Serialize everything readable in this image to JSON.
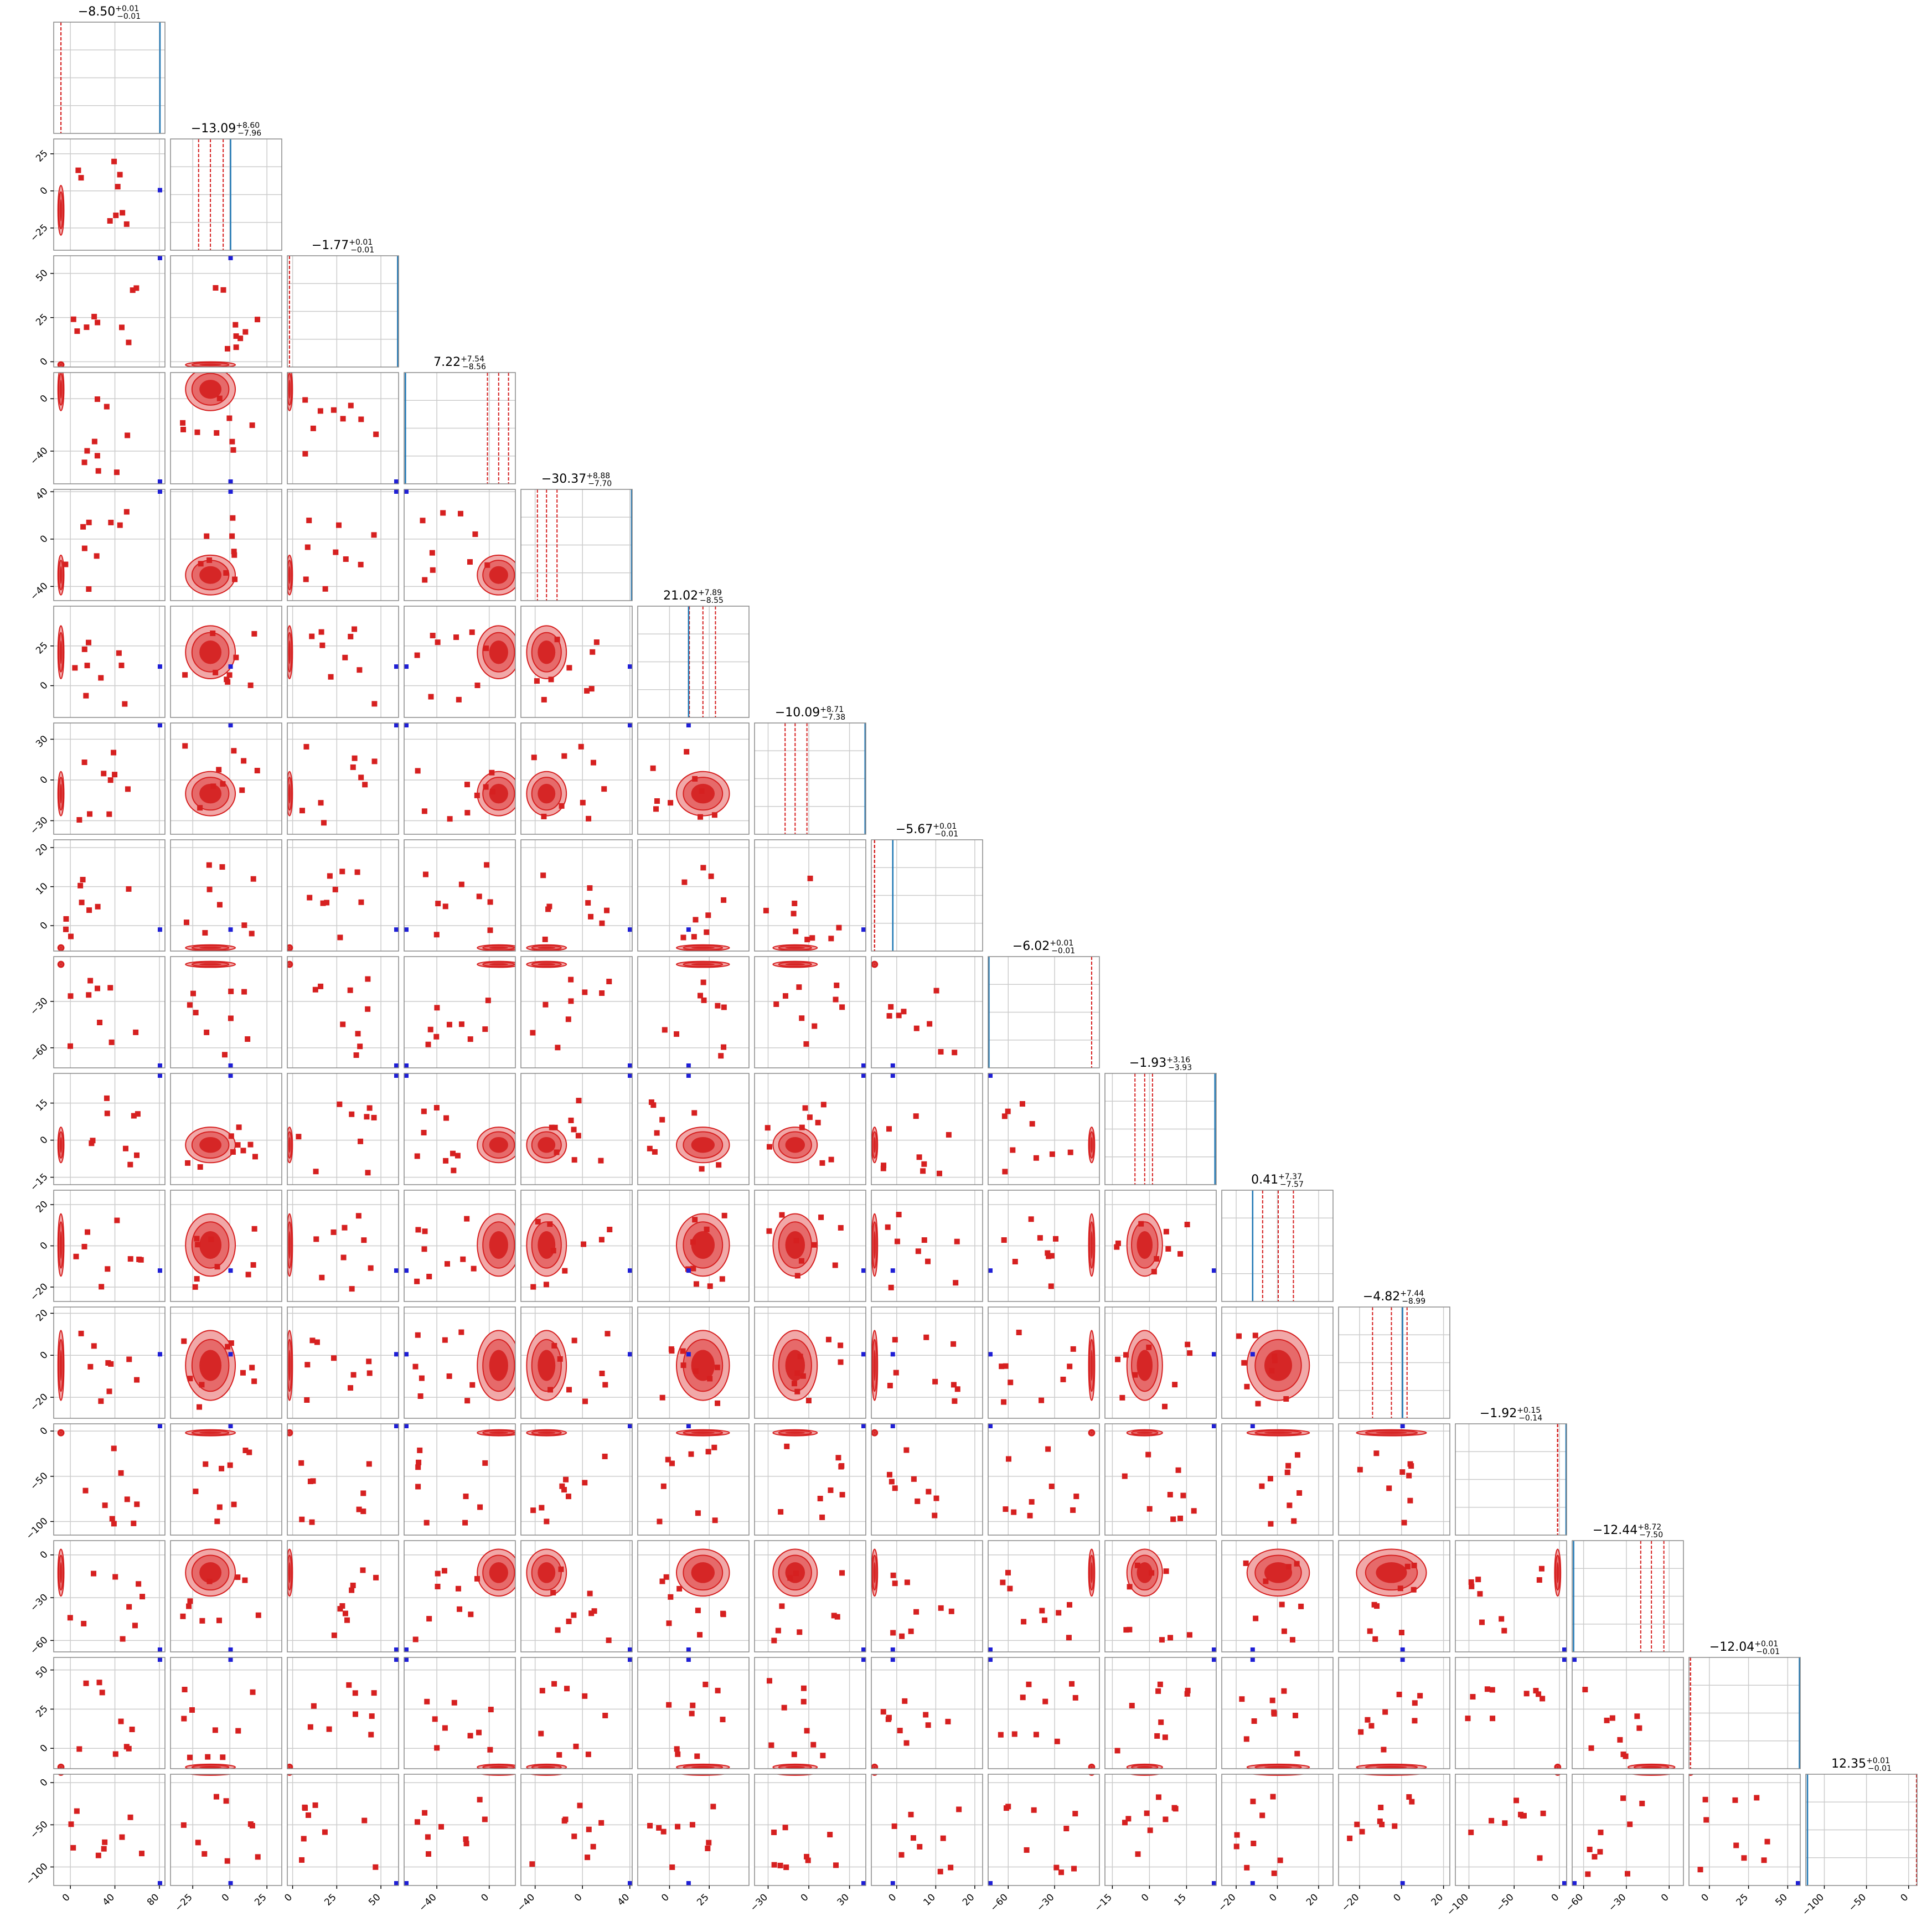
{
  "chart_data": {
    "type": "corner",
    "n_params": 16,
    "colors": {
      "samples": "#d62020",
      "truth": "#1f1fd6",
      "truth_line": "#1f77b4",
      "grid": "#cccccc"
    },
    "params": [
      {
        "median": "−8.50",
        "plus": "+0.01",
        "minus": "−0.01",
        "range": [
          -15,
          85
        ],
        "ticks": [
          0,
          40,
          80
        ],
        "tick_labels": [
          "0",
          "40",
          "80"
        ],
        "median_val": -8.5,
        "q_lo": -8.51,
        "q_hi": -8.49,
        "truth": 80.5
      },
      {
        "median": "−13.09",
        "plus": "+8.60",
        "minus": "−7.96",
        "range": [
          -40,
          35
        ],
        "ticks": [
          -25,
          0,
          25
        ],
        "tick_labels": [
          "−25",
          "0",
          "25"
        ],
        "median_val": -13.09,
        "q_lo": -21.05,
        "q_hi": -4.49,
        "truth": 0.5
      },
      {
        "median": "−1.77",
        "plus": "+0.01",
        "minus": "−0.01",
        "range": [
          -3,
          60
        ],
        "ticks": [
          0,
          25,
          50
        ],
        "tick_labels": [
          "0",
          "25",
          "50"
        ],
        "median_val": -1.77,
        "q_lo": -1.78,
        "q_hi": -1.76,
        "truth": 59.5
      },
      {
        "median": "7.22",
        "plus": "+7.54",
        "minus": "−8.56",
        "range": [
          -65,
          20
        ],
        "ticks": [
          -40,
          0
        ],
        "tick_labels": [
          "−40",
          "0"
        ],
        "median_val": 7.22,
        "q_lo": -1.34,
        "q_hi": 14.76,
        "truth": -64
      },
      {
        "median": "−30.37",
        "plus": "+8.88",
        "minus": "−7.70",
        "range": [
          -52,
          42
        ],
        "ticks": [
          -40,
          0,
          40
        ],
        "tick_labels": [
          "−40",
          "0",
          "40"
        ],
        "median_val": -30.37,
        "q_lo": -38.07,
        "q_hi": -21.49,
        "truth": 41.5
      },
      {
        "median": "21.02",
        "plus": "+7.89",
        "minus": "−8.55",
        "range": [
          -20,
          50
        ],
        "ticks": [
          0,
          25
        ],
        "tick_labels": [
          "0",
          "25"
        ],
        "median_val": 21.02,
        "q_lo": 12.47,
        "q_hi": 28.91,
        "truth": 12
      },
      {
        "median": "−10.09",
        "plus": "+8.71",
        "minus": "−7.38",
        "range": [
          -40,
          42
        ],
        "ticks": [
          -30,
          0,
          30
        ],
        "tick_labels": [
          "−30",
          "0",
          "30"
        ],
        "median_val": -10.09,
        "q_lo": -17.47,
        "q_hi": -1.38,
        "truth": 41.5
      },
      {
        "median": "−5.67",
        "plus": "+0.01",
        "minus": "−0.01",
        "range": [
          -6.5,
          22
        ],
        "ticks": [
          0,
          10,
          20
        ],
        "tick_labels": [
          "0",
          "10",
          "20"
        ],
        "median_val": -5.67,
        "q_lo": -5.68,
        "q_hi": -5.66,
        "truth": -1
      },
      {
        "median": "−6.02",
        "plus": "+0.01",
        "minus": "−0.01",
        "range": [
          -73,
          -1
        ],
        "ticks": [
          -60,
          -30
        ],
        "tick_labels": [
          "−60",
          "−30"
        ],
        "median_val": -6.02,
        "q_lo": -6.03,
        "q_hi": -6.01,
        "truth": -72.5
      },
      {
        "median": "−1.93",
        "plus": "+3.16",
        "minus": "−3.93",
        "range": [
          -18,
          27
        ],
        "ticks": [
          -15,
          0,
          15
        ],
        "tick_labels": [
          "−15",
          "0",
          "15"
        ],
        "median_val": -1.93,
        "q_lo": -5.86,
        "q_hi": 1.23,
        "truth": 26.5
      },
      {
        "median": "0.41",
        "plus": "+7.37",
        "minus": "−7.57",
        "range": [
          -27,
          27
        ],
        "ticks": [
          -20,
          0,
          20
        ],
        "tick_labels": [
          "−20",
          "0",
          "20"
        ],
        "median_val": 0.41,
        "q_lo": -7.16,
        "q_hi": 7.78,
        "truth": -12
      },
      {
        "median": "−4.82",
        "plus": "+7.44",
        "minus": "−8.99",
        "range": [
          -30,
          23
        ],
        "ticks": [
          -20,
          0,
          20
        ],
        "tick_labels": [
          "−20",
          "0",
          "20"
        ],
        "median_val": -4.82,
        "q_lo": -13.81,
        "q_hi": 2.62,
        "truth": 0.5
      },
      {
        "median": "−1.92",
        "plus": "+0.15",
        "minus": "−0.14",
        "range": [
          -115,
          8
        ],
        "ticks": [
          -100,
          -50,
          0
        ],
        "tick_labels": [
          "−100",
          "−50",
          "0"
        ],
        "median_val": -1.92,
        "q_lo": -2.06,
        "q_hi": -1.77,
        "truth": 7.5
      },
      {
        "median": "−12.44",
        "plus": "+8.72",
        "minus": "−7.50",
        "range": [
          -68,
          10
        ],
        "ticks": [
          -60,
          -30,
          0
        ],
        "tick_labels": [
          "−60",
          "−30",
          "0"
        ],
        "median_val": -12.44,
        "q_lo": -19.94,
        "q_hi": -3.72,
        "truth": -67
      },
      {
        "median": "−12.04",
        "plus": "+0.01",
        "minus": "−0.01",
        "range": [
          -13,
          58
        ],
        "ticks": [
          0,
          25,
          50
        ],
        "tick_labels": [
          "0",
          "25",
          "50"
        ],
        "median_val": -12.04,
        "q_lo": -12.05,
        "q_hi": -12.03,
        "truth": 57.5
      },
      {
        "median": "12.35",
        "plus": "+0.01",
        "minus": "−0.01",
        "range": [
          -122,
          10
        ],
        "ticks": [
          -100,
          -50,
          0
        ],
        "tick_labels": [
          "−100",
          "−50",
          "0"
        ],
        "median_val": 12.35,
        "q_lo": 12.34,
        "q_hi": 12.36,
        "truth": -120
      }
    ]
  }
}
